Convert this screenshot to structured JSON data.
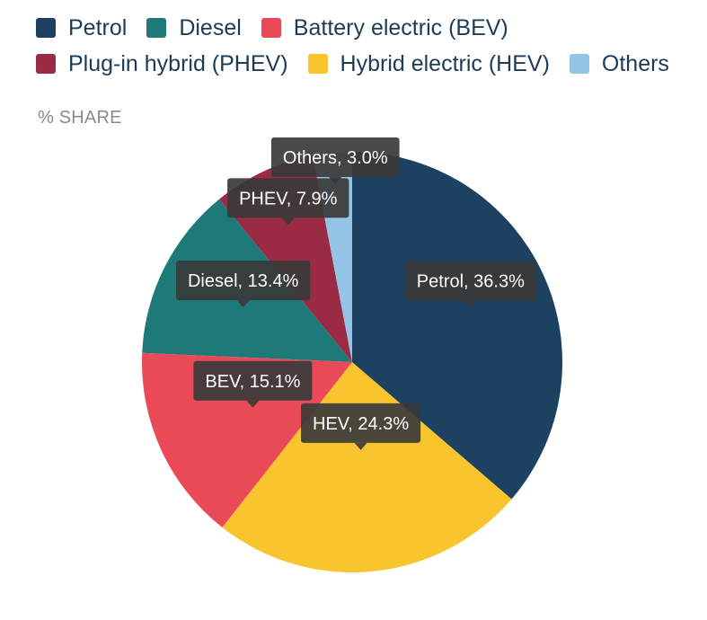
{
  "colors": {
    "petrol": "#1d4160",
    "diesel": "#1e7a79",
    "bev": "#ea4a57",
    "phev": "#992c44",
    "hev": "#f8c52f",
    "others": "#94c5e7",
    "tooltip": "#3a3a3a"
  },
  "legend": [
    {
      "label": "Petrol",
      "color": "#1d4160"
    },
    {
      "label": "Diesel",
      "color": "#1e7a79"
    },
    {
      "label": "Battery electric (BEV)",
      "color": "#ea4a57"
    },
    {
      "label": "Plug-in hybrid (PHEV)",
      "color": "#992c44"
    },
    {
      "label": "Hybrid electric (HEV)",
      "color": "#f8c52f"
    },
    {
      "label": "Others",
      "color": "#94c5e7"
    }
  ],
  "chart_data": {
    "type": "pie",
    "ylabel": "% SHARE",
    "legend_position": "top",
    "slices": [
      {
        "key": "petrol",
        "name": "Petrol",
        "value": 36.3,
        "tooltip": "Petrol, 36.3%"
      },
      {
        "key": "hev",
        "name": "HEV",
        "value": 24.3,
        "tooltip": "HEV, 24.3%"
      },
      {
        "key": "bev",
        "name": "BEV",
        "value": 15.1,
        "tooltip": "BEV, 15.1%"
      },
      {
        "key": "diesel",
        "name": "Diesel",
        "value": 13.4,
        "tooltip": "Diesel, 13.4%"
      },
      {
        "key": "phev",
        "name": "PHEV",
        "value": 7.9,
        "tooltip": "PHEV, 7.9%"
      },
      {
        "key": "others",
        "name": "Others",
        "value": 3.0,
        "tooltip": "Others, 3.0%"
      }
    ]
  }
}
